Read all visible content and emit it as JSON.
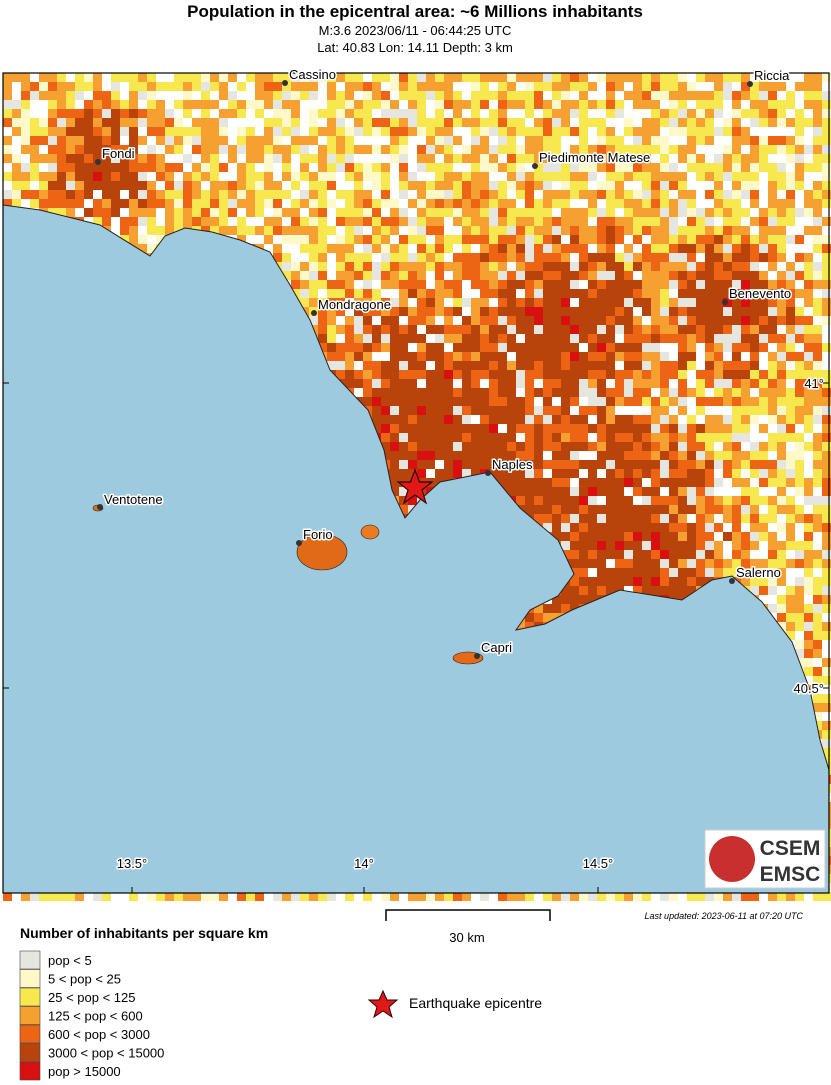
{
  "header": {
    "title": "Population in the epicentral area: ~6 Millions inhabitants",
    "subtitle": "M:3.6 2023/06/11 - 06:44:25 UTC",
    "location": "Lat: 40.83 Lon: 14.11 Depth: 3 km"
  },
  "map": {
    "places": [
      {
        "label": "Cassino"
      },
      {
        "label": "Riccia"
      },
      {
        "label": "Fondi"
      },
      {
        "label": "Piedimonte Matese"
      },
      {
        "label": "Benevento"
      },
      {
        "label": "Mondragone"
      },
      {
        "label": "Naples"
      },
      {
        "label": "Ventotene"
      },
      {
        "label": "Forio"
      },
      {
        "label": "Salerno"
      },
      {
        "label": "Capri"
      }
    ],
    "lat_labels": [
      "41°",
      "40.5°"
    ],
    "lon_labels": [
      "13.5°",
      "14°",
      "14.5°"
    ]
  },
  "logo": {
    "top": "CSEM",
    "bottom": "EMSC"
  },
  "scale_bar": {
    "label": "30 km"
  },
  "last_updated": "Last updated: 2023-06-11 at 07:20 UTC",
  "legend": {
    "title": "Number of inhabitants per square km",
    "items": [
      {
        "label": "pop < 5",
        "color": "#e6e6e0"
      },
      {
        "label": "5 < pop < 25",
        "color": "#fff8c8"
      },
      {
        "label": "25 < pop < 125",
        "color": "#f8e850"
      },
      {
        "label": "125 < pop < 600",
        "color": "#f5a030"
      },
      {
        "label": "600 < pop < 3000",
        "color": "#ec6414"
      },
      {
        "label": "3000 < pop < 15000",
        "color": "#b8440c"
      },
      {
        "label": "pop > 15000",
        "color": "#d81010"
      }
    ],
    "epicentre": "Earthquake epicentre"
  }
}
